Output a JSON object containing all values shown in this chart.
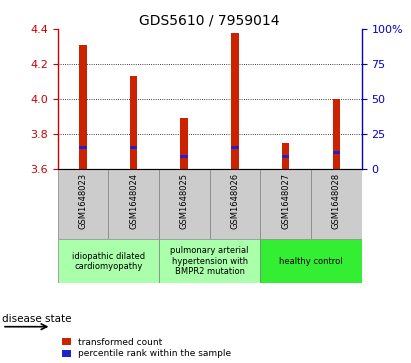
{
  "title": "GDS5610 / 7959014",
  "samples": [
    "GSM1648023",
    "GSM1648024",
    "GSM1648025",
    "GSM1648026",
    "GSM1648027",
    "GSM1648028"
  ],
  "red_values": [
    4.31,
    4.13,
    3.89,
    4.38,
    3.75,
    4.0
  ],
  "blue_values": [
    3.725,
    3.725,
    3.672,
    3.725,
    3.672,
    3.695
  ],
  "ymin": 3.6,
  "ymax": 4.4,
  "yticks_left": [
    3.6,
    3.8,
    4.0,
    4.2,
    4.4
  ],
  "yticks_right": [
    0,
    25,
    50,
    75,
    100
  ],
  "ytick_labels_right": [
    "0",
    "25",
    "50",
    "75",
    "100%"
  ],
  "left_color": "#cc0000",
  "right_color": "#0000cc",
  "bar_red_color": "#cc2200",
  "bar_blue_color": "#2222cc",
  "bar_width": 0.15,
  "blue_bar_height": 0.018,
  "groups": [
    {
      "indices": [
        0,
        1
      ],
      "label": "idiopathic dilated\ncardiomyopathy",
      "bg": "#aaffaa"
    },
    {
      "indices": [
        2,
        3
      ],
      "label": "pulmonary arterial\nhypertension with\nBMPR2 mutation",
      "bg": "#aaffaa"
    },
    {
      "indices": [
        4,
        5
      ],
      "label": "healthy control",
      "bg": "#33ee33"
    }
  ],
  "legend_red_label": "transformed count",
  "legend_blue_label": "percentile rank within the sample",
  "disease_state_label": "disease state",
  "sample_box_color": "#cccccc",
  "title_fontsize": 10,
  "tick_fontsize": 8,
  "label_fontsize": 7
}
